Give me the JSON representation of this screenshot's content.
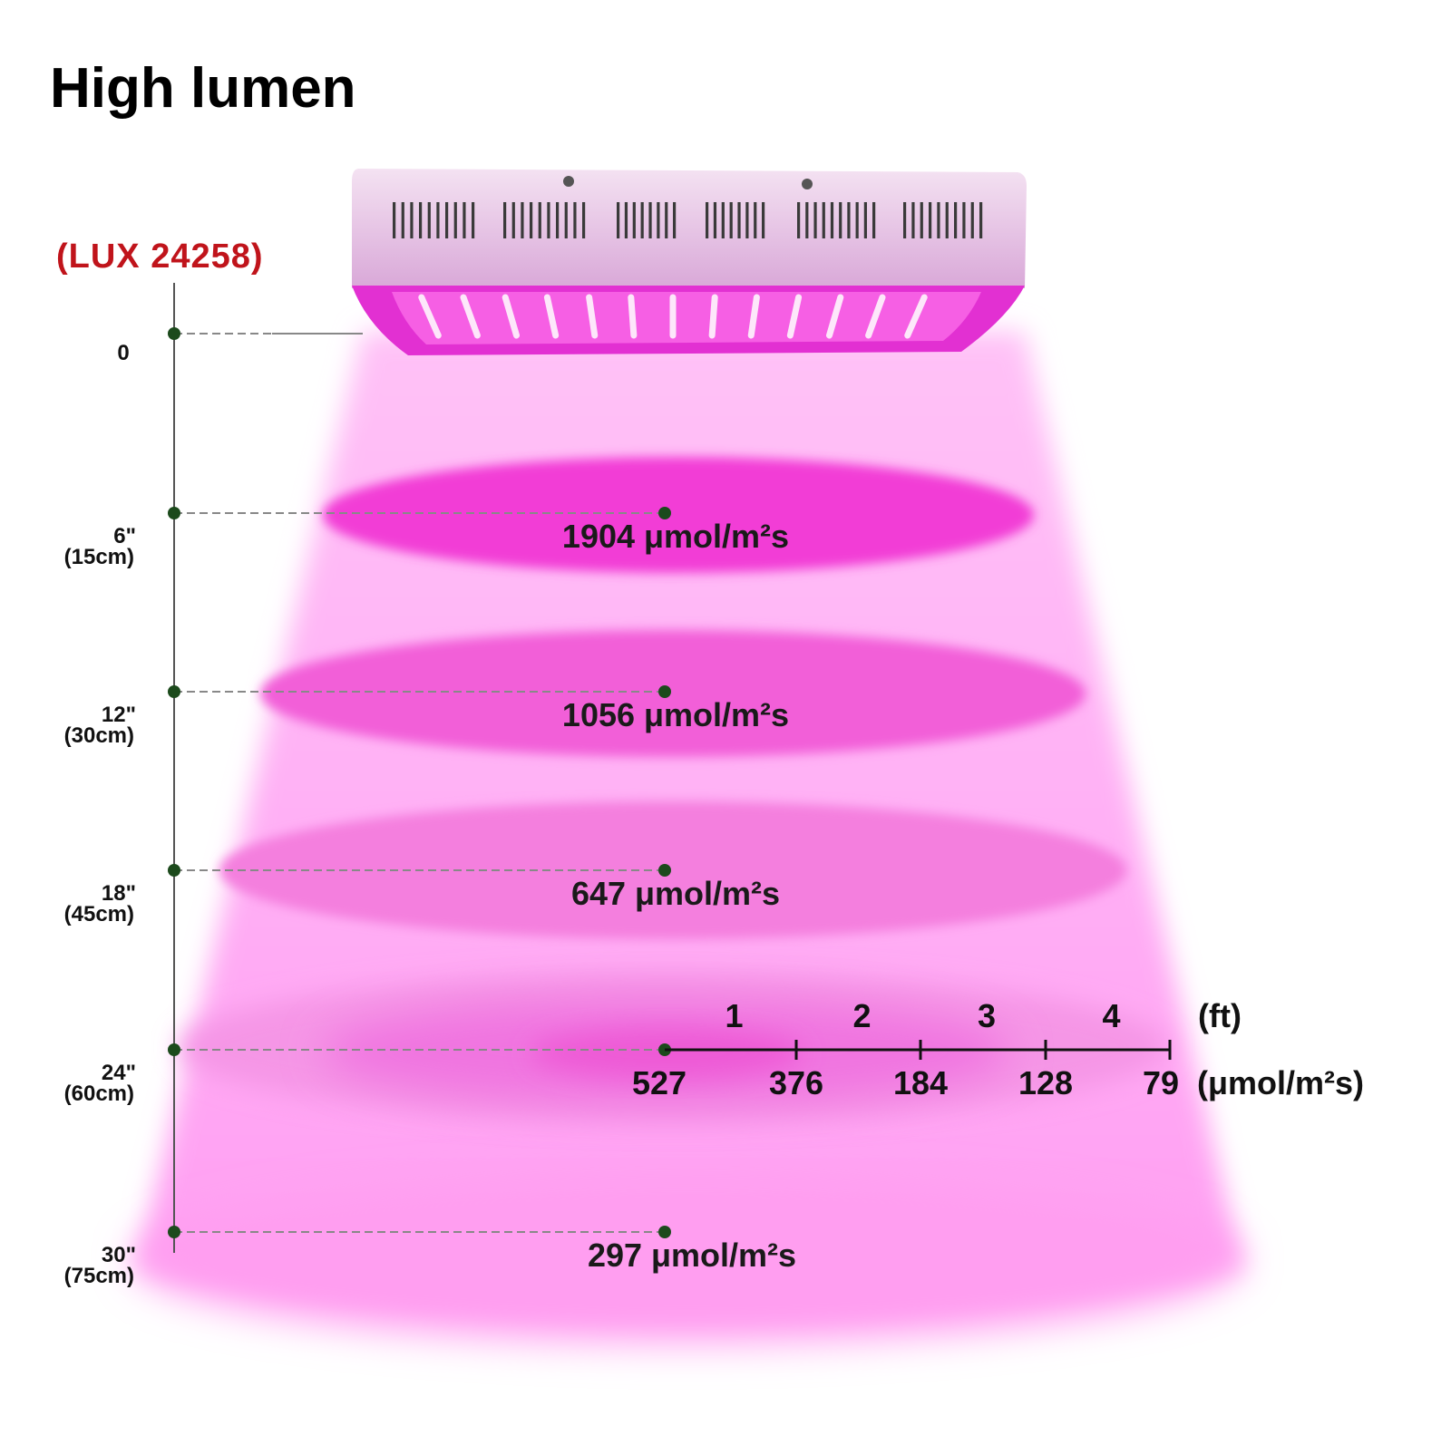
{
  "title": "High lumen",
  "lux_label": "(LUX 24258)",
  "colors": {
    "accent_red": "#c0141b",
    "marker_green": "#1c4a1c",
    "light_magenta": "#f03cd8",
    "cone_pink": "#ffb0f5"
  },
  "height_axis": {
    "ticks": [
      {
        "inches": "0",
        "cm": ""
      },
      {
        "inches": "6\"",
        "cm": "(15cm)"
      },
      {
        "inches": "12\"",
        "cm": "(30cm)"
      },
      {
        "inches": "18\"",
        "cm": "(45cm)"
      },
      {
        "inches": "24\"",
        "cm": "(60cm)"
      },
      {
        "inches": "30\"",
        "cm": "(75cm)"
      }
    ]
  },
  "levels": [
    {
      "height": "6\"",
      "ppfd": "1904 μmol/m²s"
    },
    {
      "height": "12\"",
      "ppfd": "1056 μmol/m²s"
    },
    {
      "height": "18\"",
      "ppfd": "647 μmol/m²s"
    },
    {
      "height": "24\"",
      "ppfd": ""
    },
    {
      "height": "30\"",
      "ppfd": "297 μmol/m²s"
    }
  ],
  "spread_scale": {
    "ft_labels": [
      "1",
      "2",
      "3",
      "4"
    ],
    "ft_unit": "(ft)",
    "ppfd_values": [
      "527",
      "376",
      "184",
      "128",
      "79"
    ],
    "ppfd_unit": "(μmol/m²s)"
  },
  "icons": {
    "fixture": "led-grow-light-panel-icon"
  }
}
